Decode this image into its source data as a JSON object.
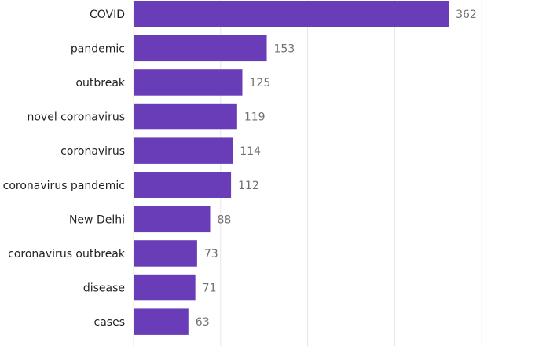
{
  "chart_data": {
    "type": "bar",
    "orientation": "horizontal",
    "categories": [
      "COVID",
      "pandemic",
      "outbreak",
      "novel coronavirus",
      "coronavirus",
      "coronavirus pandemic",
      "New Delhi",
      "coronavirus outbreak",
      "disease",
      "cases"
    ],
    "values": [
      362,
      153,
      125,
      119,
      114,
      112,
      88,
      73,
      71,
      63
    ],
    "xlim": [
      0,
      400
    ],
    "grid": true,
    "gridlines": [
      0,
      100,
      200,
      300,
      400
    ],
    "title": "",
    "xlabel": "",
    "ylabel": "",
    "bar_color": "#6a3db8",
    "data_labels": true
  }
}
